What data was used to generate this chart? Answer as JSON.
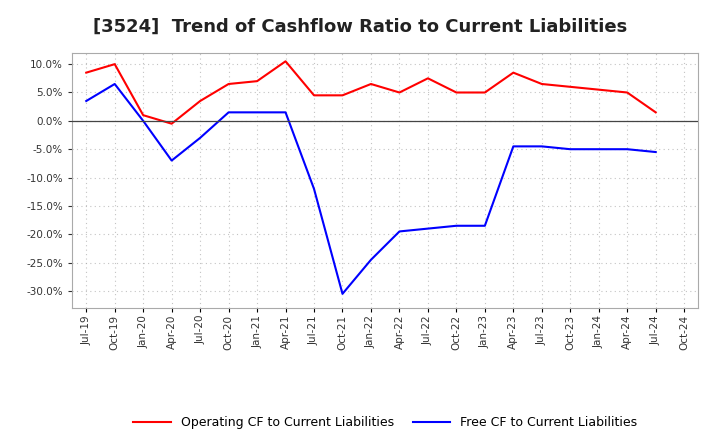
{
  "title": "[3524]  Trend of Cashflow Ratio to Current Liabilities",
  "x_labels": [
    "Jul-19",
    "Oct-19",
    "Jan-20",
    "Apr-20",
    "Jul-20",
    "Oct-20",
    "Jan-21",
    "Apr-21",
    "Jul-21",
    "Oct-21",
    "Jan-22",
    "Apr-22",
    "Jul-22",
    "Oct-22",
    "Jan-23",
    "Apr-23",
    "Jul-23",
    "Oct-23",
    "Jan-24",
    "Apr-24",
    "Jul-24",
    "Oct-24"
  ],
  "operating_cf": [
    8.5,
    10.0,
    1.0,
    -0.5,
    3.5,
    6.5,
    7.0,
    10.5,
    4.5,
    4.5,
    6.5,
    5.0,
    7.5,
    5.0,
    5.0,
    8.5,
    6.5,
    6.0,
    5.5,
    5.0,
    1.5,
    null
  ],
  "free_cf": [
    3.5,
    6.5,
    0.0,
    -7.0,
    -3.0,
    1.5,
    1.5,
    1.5,
    -12.0,
    -30.5,
    -24.5,
    -19.5,
    -19.0,
    -18.5,
    -18.5,
    -4.5,
    -4.5,
    -5.0,
    -5.0,
    -5.0,
    -5.5,
    null
  ],
  "operating_color": "#FF0000",
  "free_color": "#0000FF",
  "background_color": "#FFFFFF",
  "plot_bg_color": "#FFFFFF",
  "grid_color": "#AAAAAA",
  "ylim": [
    -33,
    12
  ],
  "yticks": [
    10.0,
    5.0,
    0.0,
    -5.0,
    -10.0,
    -15.0,
    -20.0,
    -25.0,
    -30.0
  ],
  "legend_labels": [
    "Operating CF to Current Liabilities",
    "Free CF to Current Liabilities"
  ],
  "title_fontsize": 13,
  "tick_fontsize": 7.5
}
